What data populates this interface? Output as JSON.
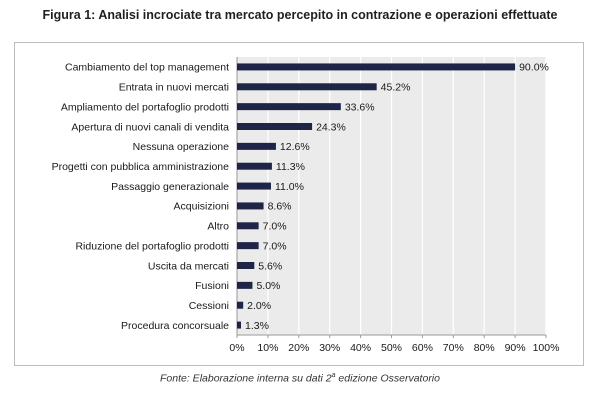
{
  "figure": {
    "title": "Figura 1: Analisi incrociate tra mercato percepito in contrazione e operazioni effettuate",
    "source_prefix": "Fonte: Elaborazione interna su dati 2",
    "source_sup": "a",
    "source_suffix": " edizione Osservatorio"
  },
  "chart_data": {
    "type": "bar",
    "orientation": "horizontal",
    "categories": [
      "Cambiamento del top management",
      "Entrata in nuovi mercati",
      "Ampliamento del portafoglio prodotti",
      "Apertura di nuovi canali di vendita",
      "Nessuna operazione",
      "Progetti con pubblica amministrazione",
      "Passaggio generazionale",
      "Acquisizioni",
      "Altro",
      "Riduzione del portafoglio prodotti",
      "Uscita da mercati",
      "Fusioni",
      "Cessioni",
      "Procedura concorsuale"
    ],
    "values": [
      90.0,
      45.2,
      33.6,
      24.3,
      12.6,
      11.3,
      11.0,
      8.6,
      7.0,
      7.0,
      5.6,
      5.0,
      2.0,
      1.3
    ],
    "value_labels": [
      "90.0%",
      "45.2%",
      "33.6%",
      "24.3%",
      "12.6%",
      "11.3%",
      "11.0%",
      "8.6%",
      "7.0%",
      "7.0%",
      "5.6%",
      "5.0%",
      "2.0%",
      "1.3%"
    ],
    "xlim": [
      0,
      100
    ],
    "xticks": [
      0,
      10,
      20,
      30,
      40,
      50,
      60,
      70,
      80,
      90,
      100
    ],
    "xtick_labels": [
      "0%",
      "10%",
      "20%",
      "30%",
      "40%",
      "50%",
      "60%",
      "70%",
      "80%",
      "90%",
      "100%"
    ],
    "grid": true,
    "bar_color": "#1f2547",
    "plot_background": "#ebebeb",
    "grid_color": "#ffffff"
  }
}
